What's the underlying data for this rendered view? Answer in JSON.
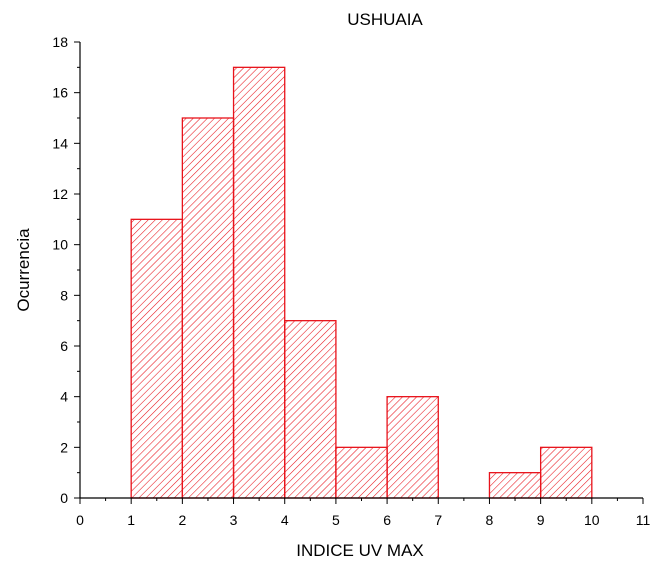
{
  "chart_data": {
    "type": "bar",
    "title": "USHUAIA",
    "xlabel": "INDICE UV MAX",
    "ylabel": "Ocurrencia",
    "bins": [
      {
        "x0": 1,
        "x1": 2,
        "value": 11
      },
      {
        "x0": 2,
        "x1": 3,
        "value": 15
      },
      {
        "x0": 3,
        "x1": 4,
        "value": 17
      },
      {
        "x0": 4,
        "x1": 5,
        "value": 7
      },
      {
        "x0": 5,
        "x1": 6,
        "value": 2
      },
      {
        "x0": 6,
        "x1": 7,
        "value": 4
      },
      {
        "x0": 8,
        "x1": 9,
        "value": 1
      },
      {
        "x0": 9,
        "x1": 10,
        "value": 2
      }
    ],
    "xlim": [
      0,
      11
    ],
    "ylim": [
      0,
      18
    ],
    "x_ticks": [
      "0",
      "1",
      "2",
      "3",
      "4",
      "5",
      "6",
      "7",
      "8",
      "9",
      "10",
      "11"
    ],
    "y_ticks": [
      "0",
      "2",
      "4",
      "6",
      "8",
      "10",
      "12",
      "14",
      "16",
      "18"
    ],
    "grid": false,
    "bar_color": "#e8131b",
    "bar_fill": "diagonal-hatch"
  }
}
